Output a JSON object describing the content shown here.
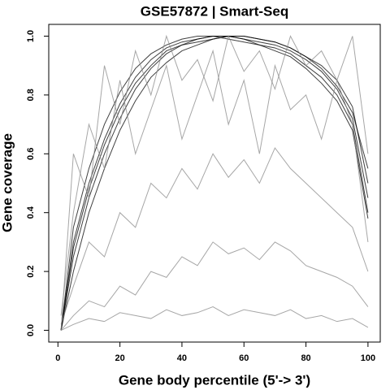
{
  "chart_data": {
    "type": "line",
    "title": "GSE57872 | Smart-Seq",
    "x_label": "Gene body percentile (5'-> 3')",
    "y_label": "Gene coverage",
    "x": [
      1,
      5,
      10,
      15,
      20,
      25,
      30,
      35,
      40,
      45,
      50,
      55,
      60,
      65,
      70,
      75,
      80,
      85,
      90,
      95,
      100
    ],
    "series": [
      {
        "color": "#000000",
        "values": [
          0.0,
          0.3,
          0.5,
          0.65,
          0.77,
          0.86,
          0.92,
          0.96,
          0.98,
          0.99,
          1.0,
          1.0,
          0.99,
          0.98,
          0.97,
          0.95,
          0.92,
          0.88,
          0.82,
          0.72,
          0.45
        ]
      },
      {
        "color": "#000000",
        "values": [
          0.0,
          0.25,
          0.45,
          0.6,
          0.72,
          0.82,
          0.89,
          0.94,
          0.97,
          0.99,
          1.0,
          0.99,
          0.98,
          0.97,
          0.96,
          0.94,
          0.9,
          0.86,
          0.8,
          0.7,
          0.4
        ]
      },
      {
        "color": "#000000",
        "values": [
          0.0,
          0.35,
          0.55,
          0.7,
          0.81,
          0.89,
          0.94,
          0.97,
          0.99,
          1.0,
          1.0,
          1.0,
          1.0,
          0.99,
          0.98,
          0.96,
          0.93,
          0.9,
          0.85,
          0.76,
          0.5
        ]
      },
      {
        "color": "#000000",
        "values": [
          0.0,
          0.2,
          0.4,
          0.55,
          0.68,
          0.78,
          0.86,
          0.91,
          0.95,
          0.97,
          0.99,
          1.0,
          0.99,
          0.97,
          0.95,
          0.93,
          0.89,
          0.84,
          0.78,
          0.68,
          0.38
        ]
      },
      {
        "color": "#000000",
        "values": [
          0.0,
          0.28,
          0.48,
          0.63,
          0.75,
          0.84,
          0.9,
          0.95,
          0.97,
          0.98,
          0.99,
          1.0,
          1.0,
          0.99,
          0.98,
          0.96,
          0.93,
          0.89,
          0.83,
          0.74,
          0.55
        ]
      },
      {
        "color": "#888888",
        "values": [
          0.05,
          0.4,
          0.7,
          0.55,
          0.85,
          0.6,
          0.75,
          0.9,
          0.65,
          0.8,
          0.95,
          0.7,
          0.85,
          0.6,
          0.9,
          0.75,
          0.8,
          0.65,
          0.85,
          0.7,
          0.3
        ]
      },
      {
        "color": "#888888",
        "values": [
          0.02,
          0.15,
          0.3,
          0.25,
          0.4,
          0.35,
          0.5,
          0.45,
          0.55,
          0.48,
          0.6,
          0.52,
          0.58,
          0.5,
          0.62,
          0.55,
          0.5,
          0.45,
          0.4,
          0.35,
          0.2
        ]
      },
      {
        "color": "#888888",
        "values": [
          0.0,
          0.05,
          0.1,
          0.08,
          0.15,
          0.12,
          0.2,
          0.18,
          0.25,
          0.22,
          0.3,
          0.26,
          0.28,
          0.24,
          0.3,
          0.27,
          0.22,
          0.2,
          0.18,
          0.15,
          0.08
        ]
      },
      {
        "color": "#888888",
        "values": [
          0.0,
          0.02,
          0.04,
          0.03,
          0.06,
          0.05,
          0.04,
          0.07,
          0.05,
          0.06,
          0.08,
          0.05,
          0.07,
          0.06,
          0.05,
          0.07,
          0.04,
          0.05,
          0.03,
          0.04,
          0.01
        ]
      },
      {
        "color": "#888888",
        "values": [
          0.0,
          0.6,
          0.45,
          0.9,
          0.7,
          0.95,
          0.8,
          1.0,
          0.85,
          0.92,
          0.78,
          1.0,
          0.88,
          0.95,
          0.82,
          1.0,
          0.9,
          0.95,
          0.85,
          1.0,
          0.6
        ]
      }
    ],
    "xlim": [
      -2.96,
      103.96
    ],
    "ylim": [
      -0.04,
      1.04
    ],
    "xticks": [
      0,
      20,
      40,
      60,
      80,
      100
    ],
    "yticks": [
      {
        "value": 0,
        "label": "0.0"
      },
      0.2,
      0.4,
      0.6,
      0.8,
      {
        "value": 1,
        "label": "1.0"
      }
    ],
    "grid": false
  }
}
